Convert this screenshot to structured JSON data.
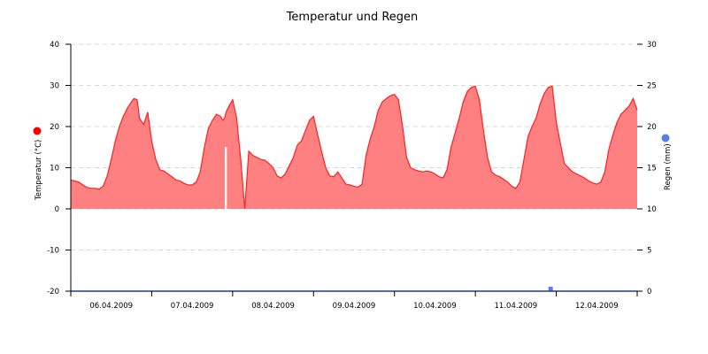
{
  "chart_data": {
    "type": "area",
    "title": "Temperatur und Regen",
    "xlabel": "",
    "ylabel": "Temperatur (°C)",
    "ylabel_right": "Regen (mm)",
    "ylim": [
      -20,
      40
    ],
    "ylim_right": [
      0,
      30
    ],
    "yticks": [
      "40",
      "30",
      "20",
      "10",
      "0",
      "-10",
      "-20"
    ],
    "yticks_right": [
      "30",
      "25",
      "20",
      "15",
      "10",
      "5",
      "0"
    ],
    "x_tick_labels": [
      "06.04.2009",
      "07.04.2009",
      "08.04.2009",
      "09.04.2009",
      "10.04.2009",
      "11.04.2009",
      "12.04.2009"
    ],
    "grid": "horizontal dashed",
    "legend": [
      {
        "name": "Temperatur (°C)",
        "color": "#ff0000",
        "position": "left axis"
      },
      {
        "name": "Regen (mm)",
        "color": "#5b7ee5",
        "position": "right axis"
      }
    ],
    "series": [
      {
        "name": "Temperatur",
        "axis": "left",
        "color": "#ff2020",
        "fill": "#ff8080",
        "x_days_from_06_04_00h": [
          0.0,
          0.05,
          0.1,
          0.15,
          0.2,
          0.25,
          0.3,
          0.35,
          0.4,
          0.45,
          0.5,
          0.55,
          0.6,
          0.65,
          0.7,
          0.75,
          0.78,
          0.82,
          0.85,
          0.9,
          0.95,
          1.0,
          1.05,
          1.1,
          1.15,
          1.2,
          1.25,
          1.3,
          1.35,
          1.4,
          1.45,
          1.5,
          1.55,
          1.6,
          1.65,
          1.7,
          1.75,
          1.8,
          1.85,
          1.88,
          1.9,
          1.92,
          1.95,
          2.0,
          2.05,
          2.1,
          2.15,
          2.2,
          2.25,
          2.3,
          2.35,
          2.4,
          2.45,
          2.5,
          2.55,
          2.6,
          2.65,
          2.7,
          2.75,
          2.8,
          2.85,
          2.9,
          2.95,
          3.0,
          3.05,
          3.1,
          3.15,
          3.2,
          3.25,
          3.3,
          3.35,
          3.4,
          3.45,
          3.5,
          3.55,
          3.6,
          3.65,
          3.7,
          3.75,
          3.8,
          3.85,
          3.9,
          3.95,
          4.0,
          4.05,
          4.1,
          4.15,
          4.2,
          4.25,
          4.3,
          4.35,
          4.4,
          4.45,
          4.5,
          4.55,
          4.6,
          4.65,
          4.7,
          4.75,
          4.8,
          4.85,
          4.9,
          4.95,
          5.0,
          5.05,
          5.1,
          5.15,
          5.2,
          5.25,
          5.3,
          5.35,
          5.4,
          5.45,
          5.5,
          5.55,
          5.6,
          5.65,
          5.7,
          5.75,
          5.8,
          5.85,
          5.9,
          5.95,
          6.0,
          6.05,
          6.1,
          6.15,
          6.2,
          6.25,
          6.3,
          6.35,
          6.4,
          6.45,
          6.5,
          6.55,
          6.6,
          6.65,
          6.7,
          6.75,
          6.8,
          6.85,
          6.9,
          6.95,
          7.0
        ],
        "values": [
          7.0,
          6.8,
          6.5,
          5.8,
          5.2,
          5.0,
          5.0,
          4.8,
          5.5,
          8.0,
          12.0,
          16.5,
          20.0,
          22.5,
          24.5,
          26.0,
          26.8,
          26.5,
          22.0,
          20.5,
          23.5,
          16.5,
          12.0,
          9.5,
          9.2,
          8.5,
          7.8,
          7.0,
          6.8,
          6.2,
          5.8,
          5.8,
          6.5,
          9.0,
          15.0,
          19.5,
          21.5,
          23.0,
          22.5,
          21.5,
          22.0,
          23.5,
          24.8,
          26.5,
          22.0,
          12.0,
          0.0,
          14.0,
          13.0,
          12.5,
          12.0,
          11.8,
          11.0,
          10.0,
          8.0,
          7.5,
          8.5,
          10.5,
          12.5,
          15.5,
          16.5,
          19.0,
          21.5,
          22.5,
          18.0,
          14.0,
          10.0,
          8.0,
          7.8,
          9.0,
          7.5,
          6.0,
          5.8,
          5.5,
          5.3,
          6.0,
          13.0,
          17.0,
          20.0,
          24.0,
          26.0,
          26.8,
          27.5,
          27.8,
          26.5,
          20.0,
          12.5,
          10.0,
          9.5,
          9.2,
          9.0,
          9.2,
          9.0,
          8.5,
          7.8,
          7.5,
          9.5,
          15.0,
          18.5,
          22.0,
          26.0,
          28.5,
          29.5,
          29.8,
          26.5,
          19.0,
          12.5,
          9.0,
          8.2,
          7.8,
          7.2,
          6.5,
          5.5,
          5.0,
          6.5,
          12.0,
          17.5,
          20.0,
          22.0,
          25.5,
          28.0,
          29.5,
          29.8,
          21.0,
          16.0,
          11.0,
          10.0,
          9.0,
          8.5,
          8.0,
          7.5,
          6.8,
          6.3,
          6.0,
          6.5,
          9.0,
          14.5,
          18.0,
          21.0,
          23.0,
          24.0,
          25.0,
          26.8,
          24.0,
          17.0,
          12.0,
          10.0,
          9.5
        ]
      },
      {
        "name": "Regen",
        "axis": "right",
        "color": "#5b7ee5",
        "values_note": "essentially 0 mm throughout; single marker near 11.04.2009 late evening",
        "points": [
          {
            "x_days_from_06_04_00h": 5.93,
            "value": 0.2
          }
        ]
      }
    ]
  }
}
